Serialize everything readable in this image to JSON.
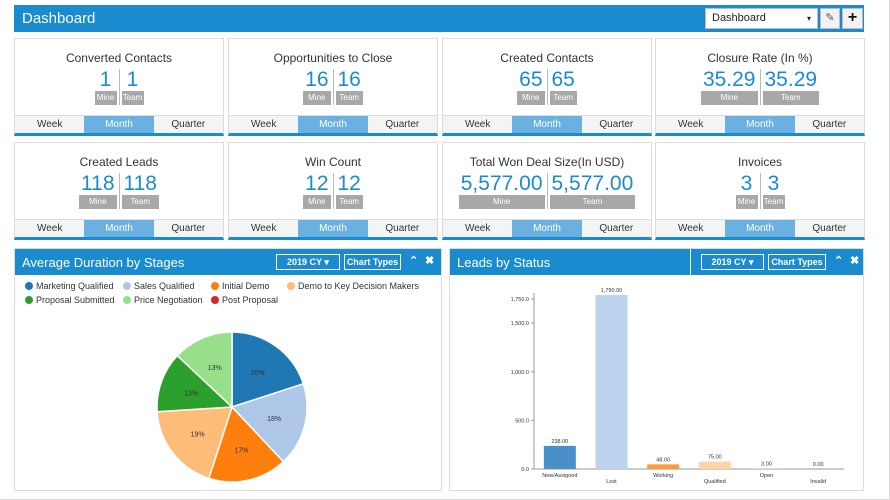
{
  "header": {
    "title": "Dashboard",
    "dashboard_select": "Dashboard",
    "caret": "▾",
    "edit_icon": "✎",
    "add_icon": "+"
  },
  "tags": {
    "mine": "Mine",
    "team": "Team"
  },
  "periods": [
    "Week",
    "Month",
    "Quarter"
  ],
  "tiles": [
    {
      "title": "Converted Contacts",
      "mine": "1",
      "team": "1",
      "active": "Month"
    },
    {
      "title": "Opportunities to Close",
      "mine": "16",
      "team": "16",
      "active": "Month"
    },
    {
      "title": "Created Contacts",
      "mine": "65",
      "team": "65",
      "active": "Month"
    },
    {
      "title": "Closure Rate (In %)",
      "mine": "35.29",
      "team": "35.29",
      "active": "Month"
    },
    {
      "title": "Created Leads",
      "mine": "118",
      "team": "118",
      "active": "Month"
    },
    {
      "title": "Win Count",
      "mine": "12",
      "team": "12",
      "active": "Month"
    },
    {
      "title": "Total Won Deal Size(In USD)",
      "mine": "5,577.00",
      "team": "5,577.00",
      "active": "Month"
    },
    {
      "title": "Invoices",
      "mine": "3",
      "team": "3",
      "active": "Month"
    }
  ],
  "panels": {
    "duration": {
      "title": "Average Duration by Stages",
      "year_select": "2019 CY",
      "chart_types": "Chart Types",
      "collapse_icon": "⌃",
      "close_icon": "✖"
    },
    "leads": {
      "title": "Leads by Status",
      "year_select": "2019 CY",
      "chart_types": "Chart Types",
      "collapse_icon": "⌃",
      "close_icon": "✖"
    }
  },
  "colors": {
    "accent": "#1b8bd0",
    "marketing_qualified": "#1f77b4",
    "sales_qualified": "#aec7e8",
    "initial_demo": "#ff7f0e",
    "demo_key": "#ffbb78",
    "proposal_submitted": "#2ca02c",
    "price_negotiation": "#98df8a",
    "post_proposal": "#d62728"
  },
  "chart_data": [
    {
      "type": "pie",
      "title": "Average Duration by Stages",
      "legend": "top-left",
      "slices": [
        {
          "name": "Marketing Qualified",
          "value": 20,
          "label": "20%",
          "color": "#1f77b4"
        },
        {
          "name": "Sales Qualified",
          "value": 18,
          "label": "18%",
          "color": "#aec7e8"
        },
        {
          "name": "Initial Demo",
          "value": 17,
          "label": "17%",
          "color": "#ff7f0e"
        },
        {
          "name": "Demo to Key Decision Makers",
          "value": 19,
          "label": "19%",
          "color": "#ffbb78"
        },
        {
          "name": "Proposal Submitted",
          "value": 13,
          "label": "13%",
          "color": "#2ca02c"
        },
        {
          "name": "Price Negotiation",
          "value": 13,
          "label": "13%",
          "color": "#98df8a"
        },
        {
          "name": "Post Proposal",
          "value": 0,
          "label": "",
          "color": "#d62728"
        }
      ]
    },
    {
      "type": "bar",
      "title": "Leads by Status",
      "categories": [
        "New/Assigned",
        "Lost",
        "Working",
        "Qualified",
        "Open",
        "Invalid"
      ],
      "values": [
        238,
        1790,
        48,
        75,
        3,
        0
      ],
      "value_labels": [
        "238.00",
        "1,790.00",
        "48.00",
        "75.00",
        "3.00",
        "0.00"
      ],
      "colors": [
        "#4a90c8",
        "#bcd3ee",
        "#ff9a3c",
        "#ffd3a3",
        "#c9c9c9",
        "#c9c9c9"
      ],
      "yticks": [
        0,
        500,
        1000,
        1500,
        1750
      ],
      "ytick_labels": [
        "0.0",
        "500.0",
        "1,000.0",
        "1,500.0",
        "1,750.0"
      ],
      "ylim": [
        0,
        1790
      ]
    }
  ]
}
